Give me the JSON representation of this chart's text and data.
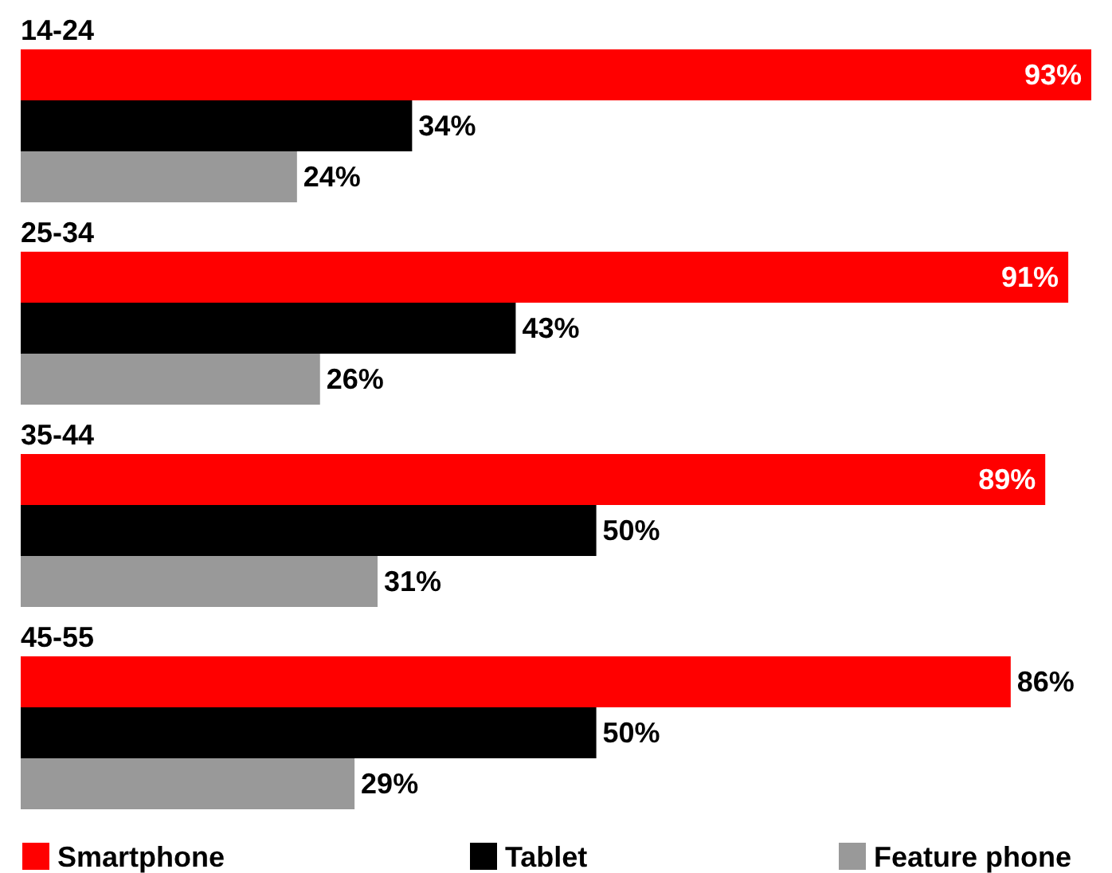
{
  "chart_data": {
    "type": "bar",
    "orientation": "horizontal",
    "categories": [
      "14-24",
      "25-34",
      "35-44",
      "45-55"
    ],
    "legend": "bottom",
    "series": [
      {
        "name": "Smartphone",
        "color": "#ff0000",
        "values": [
          93,
          91,
          89,
          86
        ],
        "value_labels": [
          "93%",
          "91%",
          "89%",
          "86%"
        ]
      },
      {
        "name": "Tablet",
        "color": "#000000",
        "values": [
          34,
          43,
          50,
          50
        ],
        "value_labels": [
          "34%",
          "43%",
          "50%",
          "50%"
        ]
      },
      {
        "name": "Feature phone",
        "color": "#999999",
        "values": [
          24,
          26,
          31,
          29
        ],
        "value_labels": [
          "24%",
          "26%",
          "31%",
          "29%"
        ]
      }
    ]
  }
}
